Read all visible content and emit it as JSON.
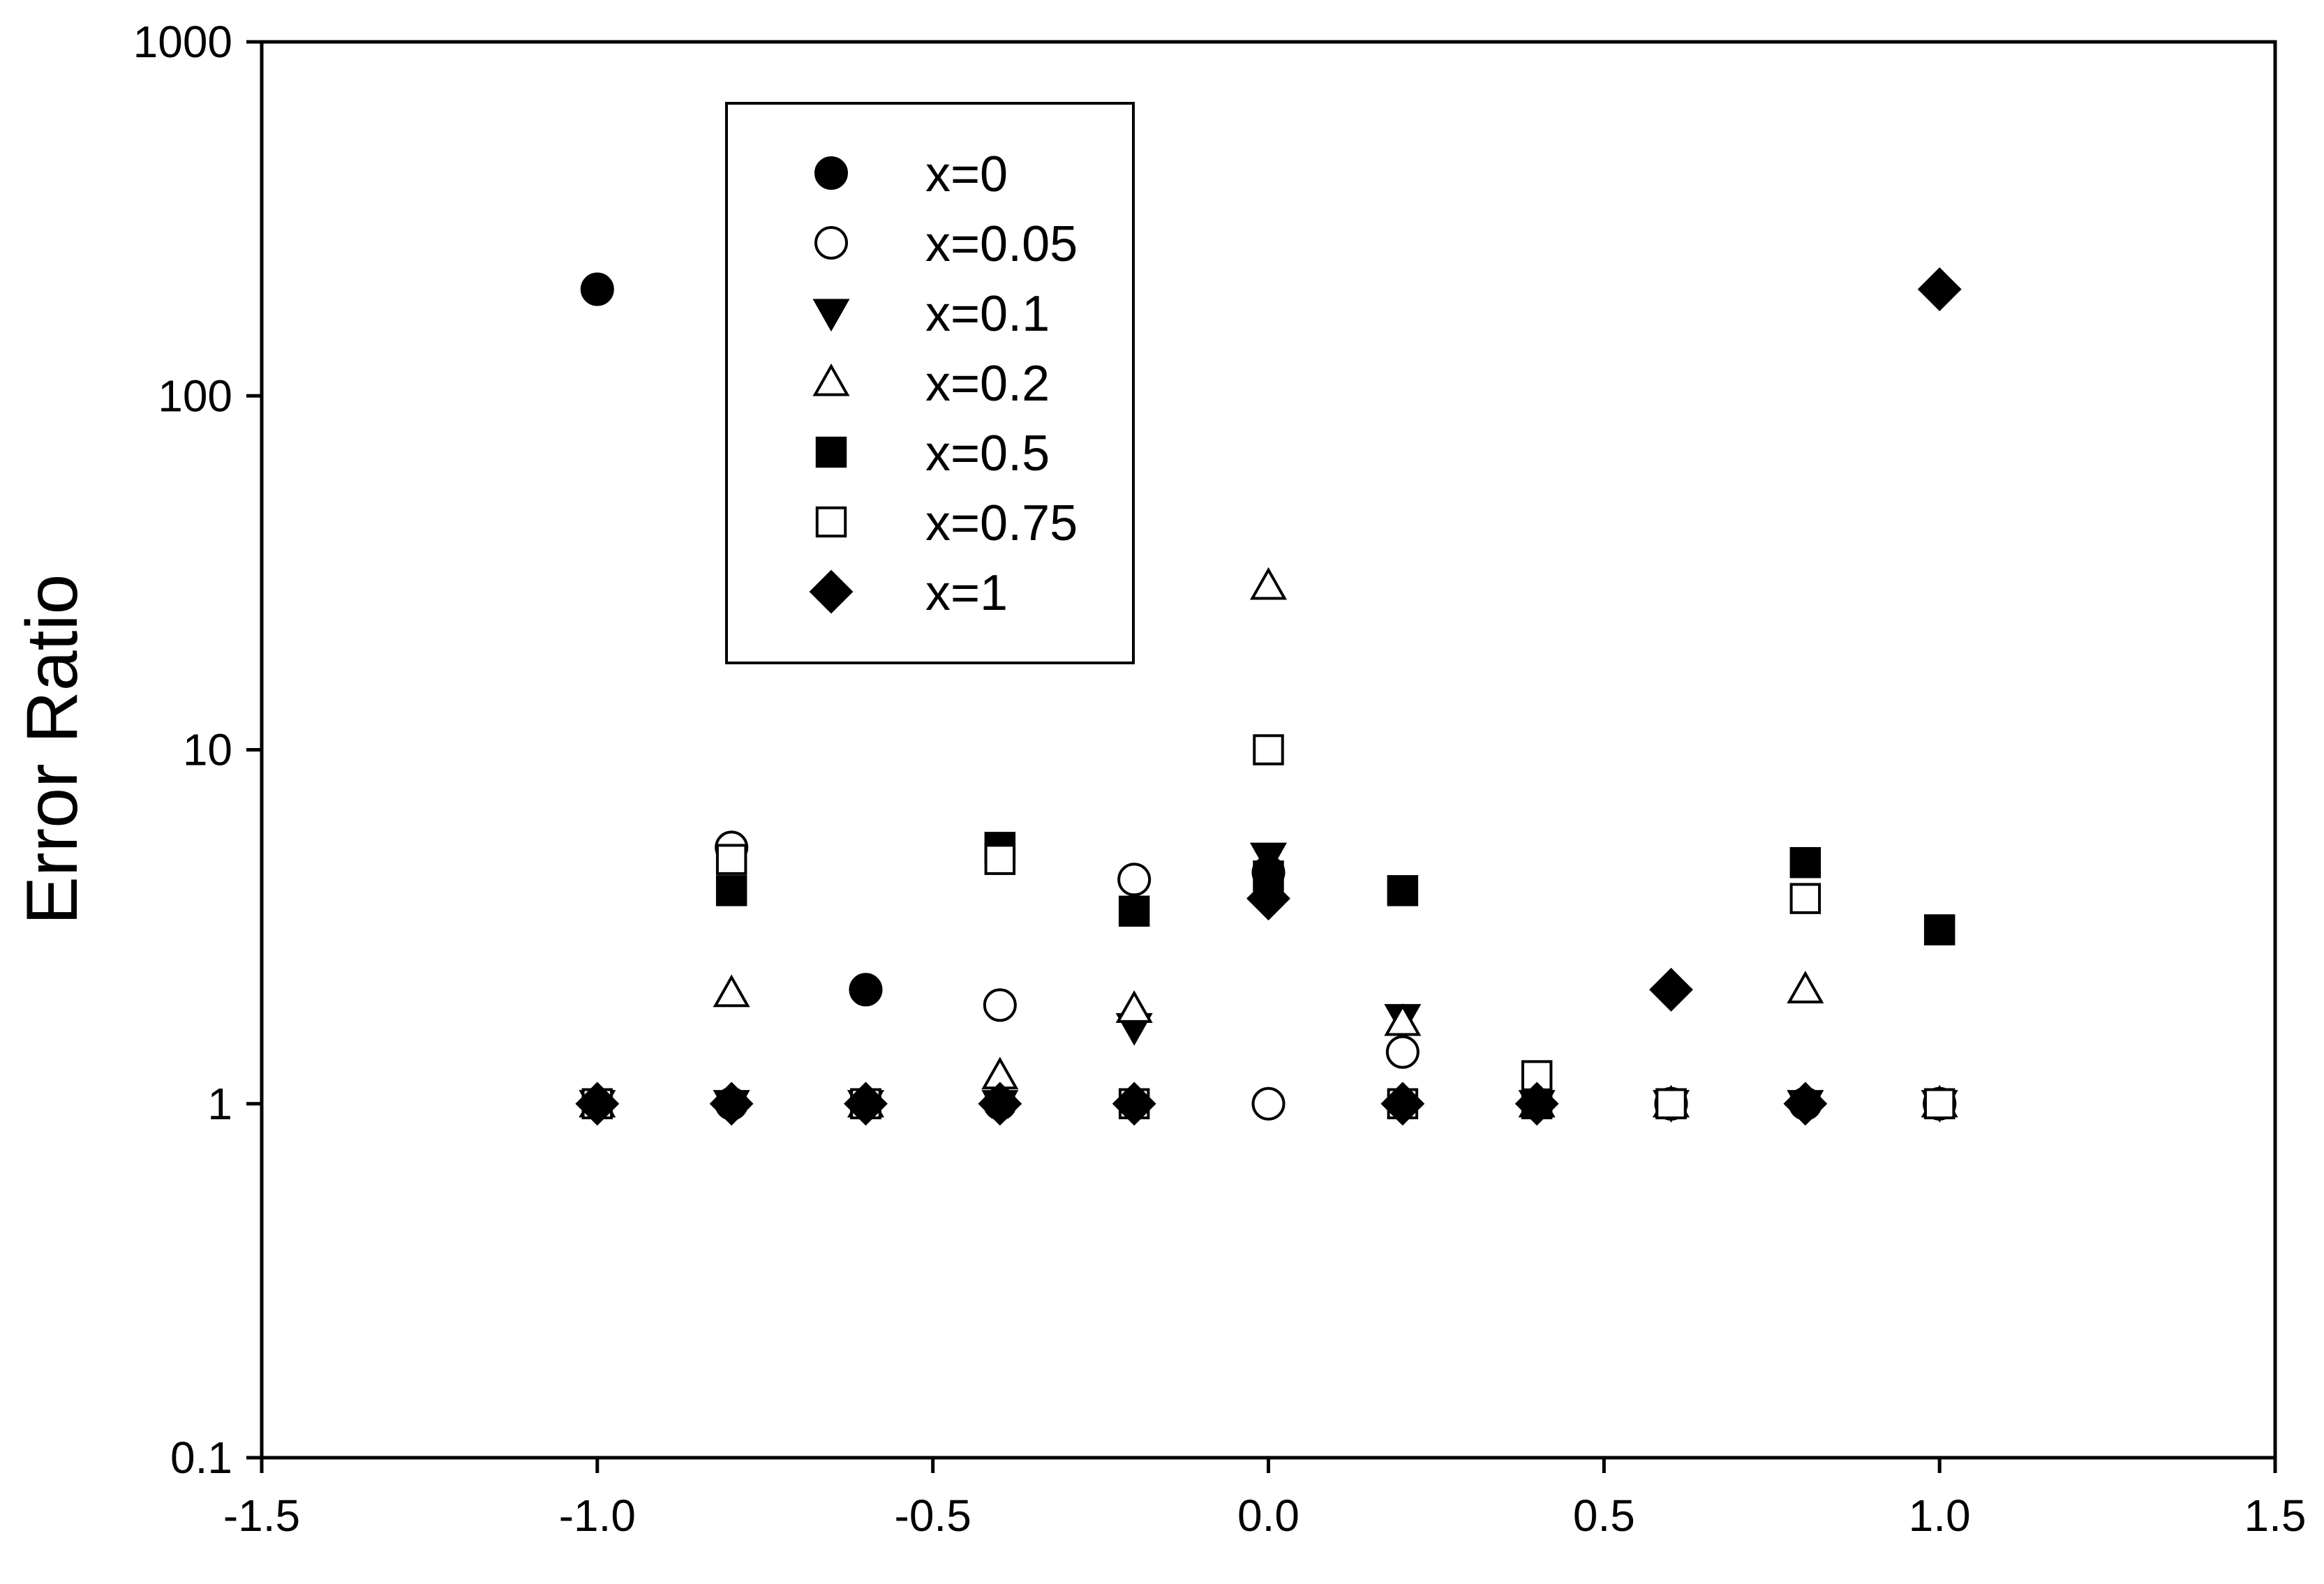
{
  "chart_data": {
    "type": "scatter",
    "title": "",
    "xlabel": "",
    "ylabel": "Error Ratio",
    "xlim": [
      -1.5,
      1.5
    ],
    "ylim": [
      0.1,
      1000
    ],
    "yscale": "log",
    "grid": false,
    "legend_position": "top-left",
    "x_ticks": [
      "-1.5",
      "-1.0",
      "-0.5",
      "0.0",
      "0.5",
      "1.0",
      "1.5"
    ],
    "y_ticks": [
      "0.1",
      "1",
      "10",
      "100",
      "1000"
    ],
    "series": [
      {
        "name": "x=0",
        "marker": "filled-circle",
        "points": [
          [
            -1.0,
            200
          ],
          [
            -0.8,
            1.0
          ],
          [
            -0.6,
            2.1
          ],
          [
            -0.6,
            1.0
          ],
          [
            -0.4,
            1.0
          ],
          [
            -0.2,
            1.0
          ],
          [
            0.0,
            4.5
          ],
          [
            0.2,
            1.0
          ],
          [
            0.4,
            1.0
          ],
          [
            0.6,
            1.0
          ],
          [
            0.8,
            1.0
          ],
          [
            1.0,
            1.0
          ]
        ]
      },
      {
        "name": "x=0.05",
        "marker": "open-circle",
        "points": [
          [
            -1.0,
            1.0
          ],
          [
            -0.8,
            5.3
          ],
          [
            -0.6,
            1.0
          ],
          [
            -0.4,
            1.9
          ],
          [
            -0.2,
            4.3
          ],
          [
            0.0,
            1.0
          ],
          [
            0.2,
            1.4
          ],
          [
            0.4,
            1.0
          ],
          [
            0.6,
            1.0
          ],
          [
            0.8,
            1.0
          ],
          [
            1.0,
            1.0
          ]
        ]
      },
      {
        "name": "x=0.1",
        "marker": "filled-triangle-down",
        "points": [
          [
            -1.0,
            1.0
          ],
          [
            -0.8,
            1.0
          ],
          [
            -0.6,
            1.0
          ],
          [
            -0.4,
            1.0
          ],
          [
            -0.2,
            1.65
          ],
          [
            0.0,
            5.0
          ],
          [
            0.2,
            1.75
          ],
          [
            0.4,
            1.0
          ],
          [
            0.6,
            1.0
          ],
          [
            0.8,
            1.0
          ],
          [
            1.0,
            1.0
          ]
        ]
      },
      {
        "name": "x=0.2",
        "marker": "open-triangle-up",
        "points": [
          [
            -1.0,
            1.0
          ],
          [
            -0.8,
            2.05
          ],
          [
            -0.6,
            1.0
          ],
          [
            -0.4,
            1.2
          ],
          [
            -0.2,
            1.85
          ],
          [
            0.0,
            29
          ],
          [
            0.2,
            1.7
          ],
          [
            0.4,
            1.0
          ],
          [
            0.6,
            1.0
          ],
          [
            0.8,
            2.1
          ],
          [
            1.0,
            1.0
          ]
        ]
      },
      {
        "name": "x=0.5",
        "marker": "filled-square",
        "points": [
          [
            -1.0,
            1.0
          ],
          [
            -0.8,
            4.0
          ],
          [
            -0.6,
            1.0
          ],
          [
            -0.4,
            5.3
          ],
          [
            -0.2,
            3.5
          ],
          [
            0.0,
            4.4
          ],
          [
            0.2,
            4.0
          ],
          [
            0.4,
            1.0
          ],
          [
            0.6,
            1.0
          ],
          [
            0.8,
            4.8
          ],
          [
            1.0,
            3.1
          ]
        ]
      },
      {
        "name": "x=0.75",
        "marker": "open-square",
        "points": [
          [
            -1.0,
            1.0
          ],
          [
            -0.8,
            4.9
          ],
          [
            -0.6,
            1.0
          ],
          [
            -0.4,
            4.9
          ],
          [
            -0.2,
            1.0
          ],
          [
            0.0,
            10
          ],
          [
            0.2,
            1.0
          ],
          [
            0.4,
            1.2
          ],
          [
            0.6,
            1.0
          ],
          [
            0.8,
            3.8
          ],
          [
            1.0,
            1.0
          ]
        ]
      },
      {
        "name": "x=1",
        "marker": "filled-diamond",
        "points": [
          [
            -1.0,
            1.0
          ],
          [
            -0.8,
            1.0
          ],
          [
            -0.6,
            1.0
          ],
          [
            -0.4,
            1.0
          ],
          [
            -0.2,
            1.0
          ],
          [
            0.0,
            3.8
          ],
          [
            0.2,
            1.0
          ],
          [
            0.4,
            1.0
          ],
          [
            0.6,
            2.1
          ],
          [
            0.8,
            1.0
          ],
          [
            1.0,
            200
          ]
        ]
      }
    ]
  }
}
